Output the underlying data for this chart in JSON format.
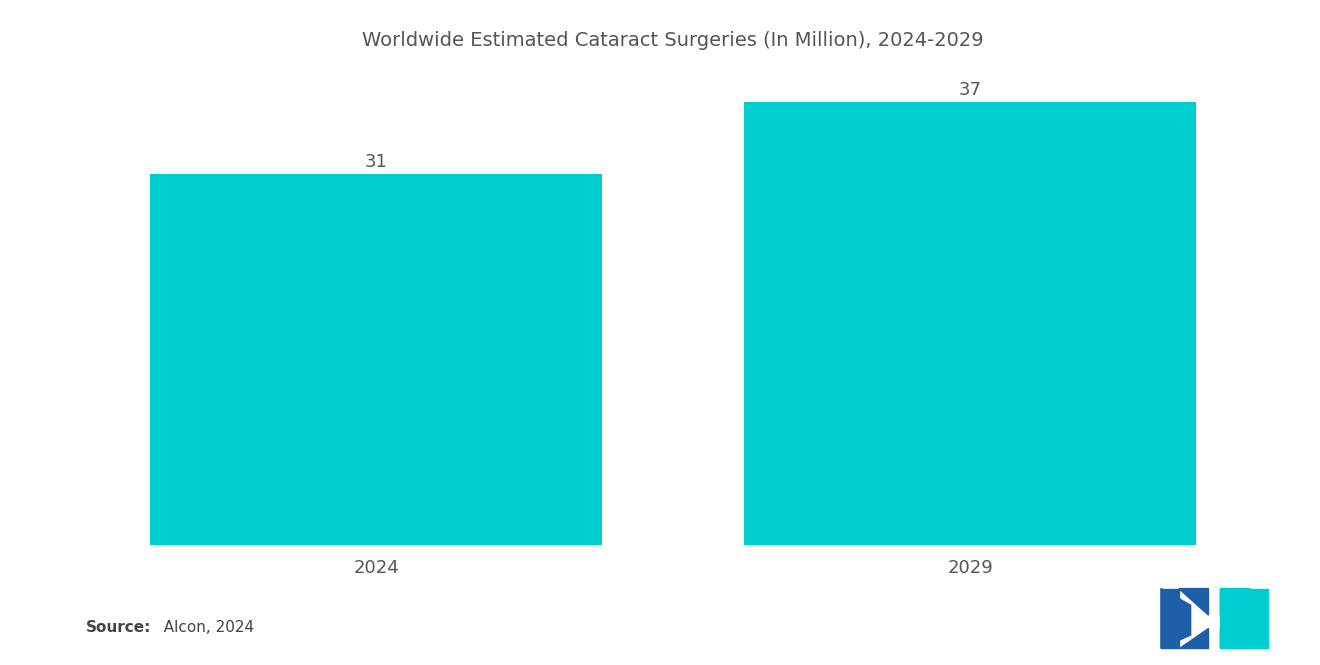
{
  "title": "Worldwide Estimated Cataract Surgeries (In Million), 2024-2029",
  "categories": [
    "2024",
    "2029"
  ],
  "values": [
    31,
    37
  ],
  "bar_color": "#00CDD0",
  "background_color": "#ffffff",
  "title_fontsize": 14,
  "label_fontsize": 13,
  "value_fontsize": 13,
  "source_bold": "Source:",
  "source_normal": "  Alcon, 2024",
  "ylim": [
    0,
    40
  ],
  "bar_width": 0.38,
  "x_positions": [
    0.25,
    0.75
  ],
  "xlim": [
    0,
    1
  ],
  "text_color": "#555555",
  "logo_blue": "#1e5fa8",
  "logo_teal": "#00CDD0"
}
